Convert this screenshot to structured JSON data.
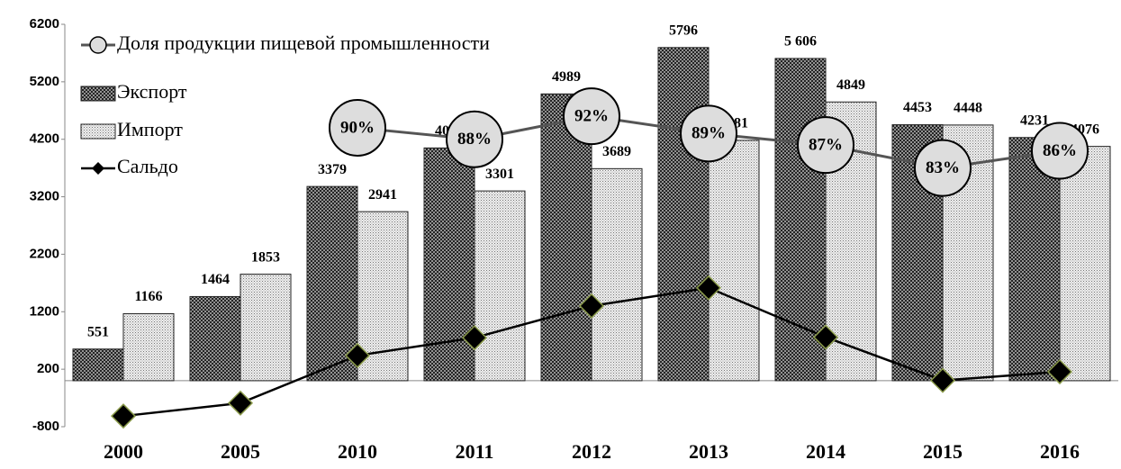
{
  "chart_data": {
    "type": "bar",
    "categories": [
      "2000",
      "2005",
      "2010",
      "2011",
      "2012",
      "2013",
      "2014",
      "2015",
      "2016"
    ],
    "ylim": [
      -800,
      6200
    ],
    "yticks": [
      -800,
      200,
      1200,
      2200,
      3200,
      4200,
      5200,
      6200
    ],
    "y2lim": [
      38,
      108
    ],
    "legend": "upper left",
    "series": [
      {
        "name": "Доля продукции пищевой промышленности",
        "type": "line",
        "axis": "y2",
        "color": "#555555",
        "values": [
          null,
          null,
          90,
          88,
          92,
          89,
          87,
          83,
          86
        ],
        "value_labels": [
          null,
          null,
          "90%",
          "88%",
          "92%",
          "89%",
          "87%",
          "83%",
          "86%"
        ]
      },
      {
        "name": "Экспорт",
        "type": "bar",
        "color": "#3a3a3a",
        "values": [
          551,
          1464,
          3379,
          4049,
          4989,
          5796,
          5606,
          4453,
          4231
        ],
        "value_labels": [
          "551",
          "1464",
          "3379",
          "4049",
          "4989",
          "5796",
          "5 606",
          "4453",
          "4231"
        ]
      },
      {
        "name": "Импорт",
        "type": "bar",
        "color": "#bbbbbb",
        "values": [
          1166,
          1853,
          2941,
          3301,
          3689,
          4181,
          4849,
          4448,
          4076
        ]
      },
      {
        "name": "Сальдо",
        "type": "line",
        "color": "#000000",
        "values": [
          -615,
          -389,
          438,
          748,
          1300,
          1615,
          757,
          5,
          155
        ]
      }
    ]
  }
}
